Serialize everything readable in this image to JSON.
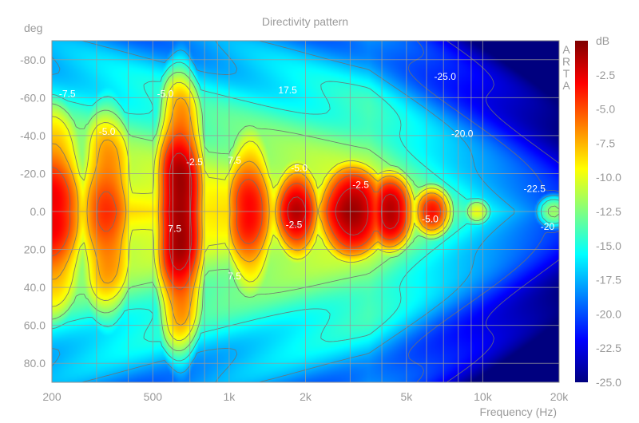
{
  "chart_data": {
    "type": "heatmap",
    "title": "Directivity pattern",
    "watermark": "ARTA",
    "xlabel": "Frequency (Hz)",
    "ylabel": "deg",
    "x_scale": "log",
    "xlim": [
      200,
      20000
    ],
    "ylim": [
      -90,
      90
    ],
    "x_ticks": [
      {
        "value": 200,
        "label": "200"
      },
      {
        "value": 500,
        "label": "500"
      },
      {
        "value": 1000,
        "label": "1k"
      },
      {
        "value": 2000,
        "label": "2k"
      },
      {
        "value": 5000,
        "label": "5k"
      },
      {
        "value": 10000,
        "label": "10k"
      },
      {
        "value": 20000,
        "label": "20k"
      }
    ],
    "y_ticks": [
      {
        "value": -80,
        "label": "-80.0"
      },
      {
        "value": -60,
        "label": "-60.0"
      },
      {
        "value": -40,
        "label": "-40.0"
      },
      {
        "value": -20,
        "label": "-20.0"
      },
      {
        "value": 0,
        "label": "0.0"
      },
      {
        "value": 20,
        "label": "20.0"
      },
      {
        "value": 40,
        "label": "40.0"
      },
      {
        "value": 60,
        "label": "60.0"
      },
      {
        "value": 80,
        "label": "80.0"
      }
    ],
    "grid": true,
    "colorbar": {
      "label": "dB",
      "range": [
        -25,
        0
      ],
      "ticks": [
        "-2.5",
        "-5.0",
        "-7.5",
        "-10.0",
        "-12.5",
        "-15.0",
        "-17.5",
        "-20.0",
        "-22.5",
        "-25.0"
      ],
      "colors": [
        "#00007f",
        "#0000ff",
        "#0080ff",
        "#00ffff",
        "#80ff80",
        "#ffff00",
        "#ff8000",
        "#ff0000",
        "#7f0000"
      ]
    },
    "contour_levels": [
      -2.5,
      -5,
      -7.5,
      -10,
      -12.5,
      -15,
      -17.5,
      -20,
      -22.5
    ],
    "contour_labels": [
      {
        "freq": 230,
        "angle": -62,
        "label": "-7.5"
      },
      {
        "freq": 330,
        "angle": -42,
        "label": "-5.0"
      },
      {
        "freq": 560,
        "angle": -62,
        "label": "-5.0"
      },
      {
        "freq": 730,
        "angle": -26,
        "label": "-2.5"
      },
      {
        "freq": 1700,
        "angle": -64,
        "label": "17.5"
      },
      {
        "freq": 1050,
        "angle": -27,
        "label": "7.5"
      },
      {
        "freq": 1890,
        "angle": -23,
        "label": "-5.0"
      },
      {
        "freq": 3300,
        "angle": -14,
        "label": "-2.5"
      },
      {
        "freq": 1800,
        "angle": 7,
        "label": "-2.5"
      },
      {
        "freq": 610,
        "angle": 9,
        "label": "7.5"
      },
      {
        "freq": 1050,
        "angle": 34,
        "label": "7.5"
      },
      {
        "freq": 6200,
        "angle": 4,
        "label": "-5.0"
      },
      {
        "freq": 7100,
        "angle": -71,
        "label": "-25.0"
      },
      {
        "freq": 8300,
        "angle": -41,
        "label": "-20.0"
      },
      {
        "freq": 16000,
        "angle": -12,
        "label": "-22.5"
      },
      {
        "freq": 18000,
        "angle": 8,
        "label": "-20"
      }
    ]
  }
}
